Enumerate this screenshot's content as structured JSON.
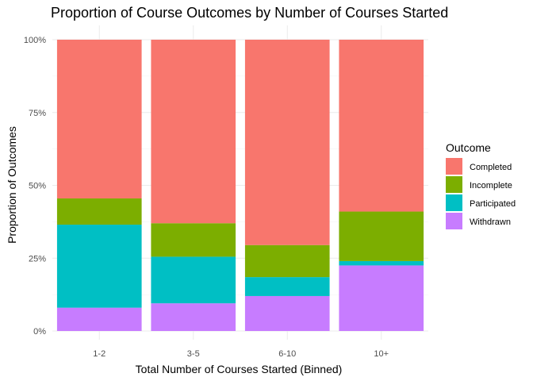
{
  "chart_data": {
    "type": "bar",
    "stacked": true,
    "title": "Proportion of Course Outcomes by Number of Courses Started",
    "xlabel": "Total Number of Courses Started (Binned)",
    "ylabel": "Proportion of Outcomes",
    "categories": [
      "1-2",
      "3-5",
      "6-10",
      "10+"
    ],
    "ylim": [
      0,
      1
    ],
    "yticks": [
      0,
      0.25,
      0.5,
      0.75,
      1
    ],
    "ytick_labels": [
      "0%",
      "25%",
      "50%",
      "75%",
      "100%"
    ],
    "grid": true,
    "legend": {
      "title": "Outcome",
      "position": "right"
    },
    "series": [
      {
        "name": "Completed",
        "color": "#F8766D",
        "values": [
          0.545,
          0.63,
          0.705,
          0.59
        ]
      },
      {
        "name": "Incomplete",
        "color": "#7CAE00",
        "values": [
          0.09,
          0.115,
          0.11,
          0.17
        ]
      },
      {
        "name": "Participated",
        "color": "#00BFC4",
        "values": [
          0.285,
          0.16,
          0.065,
          0.015
        ]
      },
      {
        "name": "Withdrawn",
        "color": "#C77CFF",
        "values": [
          0.08,
          0.095,
          0.12,
          0.225
        ]
      }
    ]
  }
}
